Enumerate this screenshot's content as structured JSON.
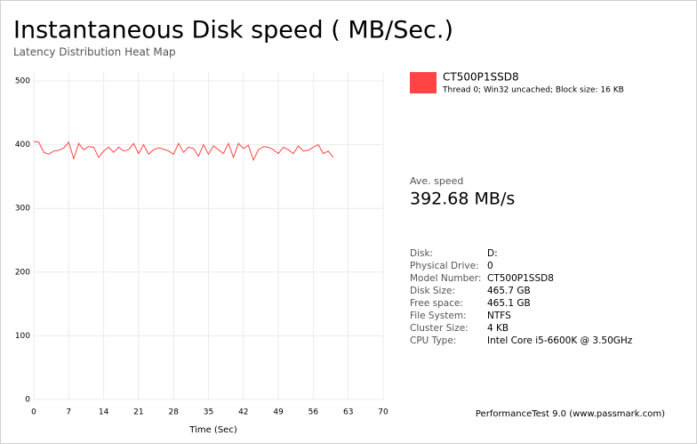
{
  "chart_data": {
    "type": "line",
    "title": "Instantaneous Disk speed ( MB/Sec.)",
    "subtitle": "Latency Distribution Heat Map",
    "x_label": "Time (Sec)",
    "x": [
      0,
      1,
      2,
      3,
      4,
      5,
      6,
      7,
      8,
      9,
      10,
      11,
      12,
      13,
      14,
      15,
      16,
      17,
      18,
      19,
      20,
      21,
      22,
      23,
      24,
      25,
      26,
      27,
      28,
      29,
      30,
      31,
      32,
      33,
      34,
      35,
      36,
      37,
      38,
      39,
      40,
      41,
      42,
      43,
      44,
      45,
      46,
      47,
      48,
      49,
      50,
      51,
      52,
      53,
      54,
      55,
      56,
      57,
      58,
      59,
      60
    ],
    "series": [
      {
        "name": "CT500P1SSD8",
        "color": "#ff4444",
        "values": [
          405,
          404,
          388,
          385,
          390,
          391,
          395,
          404,
          378,
          402,
          392,
          397,
          396,
          380,
          390,
          396,
          388,
          396,
          390,
          392,
          402,
          386,
          400,
          385,
          392,
          395,
          393,
          390,
          385,
          402,
          388,
          396,
          394,
          382,
          400,
          385,
          398,
          392,
          386,
          402,
          380,
          402,
          394,
          399,
          376,
          392,
          397,
          396,
          392,
          386,
          396,
          392,
          386,
          398,
          390,
          391,
          396,
          400,
          386,
          390,
          380
        ]
      }
    ],
    "xlim": [
      0,
      70
    ],
    "xticks": [
      0,
      7,
      14,
      21,
      28,
      35,
      42,
      49,
      56,
      63,
      70
    ],
    "ylim": [
      0,
      500
    ],
    "yticks": [
      0,
      100,
      200,
      300,
      400,
      500
    ],
    "grid": true
  },
  "legend_note": "Thread 0; Win32 uncached; Block size: 16 KB",
  "summary": {
    "label": "Ave. speed",
    "value": "392.68 MB/s"
  },
  "info": [
    [
      "Disk:",
      "D:"
    ],
    [
      "Physical Drive:",
      "0"
    ],
    [
      "Model Number:",
      "CT500P1SSD8"
    ],
    [
      "Disk Size:",
      "465.7 GB"
    ],
    [
      "Free space:",
      "465.1 GB"
    ],
    [
      "File System:",
      "NTFS"
    ],
    [
      "Cluster Size:",
      "4 KB"
    ],
    [
      "CPU Type:",
      "Intel Core i5-6600K @ 3.50GHz"
    ]
  ],
  "footer": "PerformanceTest 9.0 (www.passmark.com)"
}
